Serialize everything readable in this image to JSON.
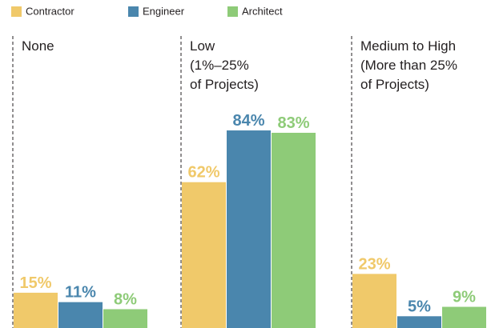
{
  "chart_data": {
    "type": "bar",
    "categories": [
      "None",
      "Low\n(1%–25%\nof Projects)",
      "Medium to High\n(More than 25%\nof Projects)"
    ],
    "series": [
      {
        "name": "Contractor",
        "color": "#f0c96a",
        "values": [
          15,
          62,
          23
        ],
        "value_labels": [
          "15%",
          "62%",
          "23%"
        ]
      },
      {
        "name": "Engineer",
        "color": "#4a86ad",
        "values": [
          11,
          84,
          5
        ],
        "value_labels": [
          "11%",
          "84%",
          "5%"
        ]
      },
      {
        "name": "Architect",
        "color": "#8ecb78",
        "values": [
          8,
          83,
          9
        ],
        "value_labels": [
          "8%",
          "83%",
          "9%"
        ]
      }
    ]
  }
}
